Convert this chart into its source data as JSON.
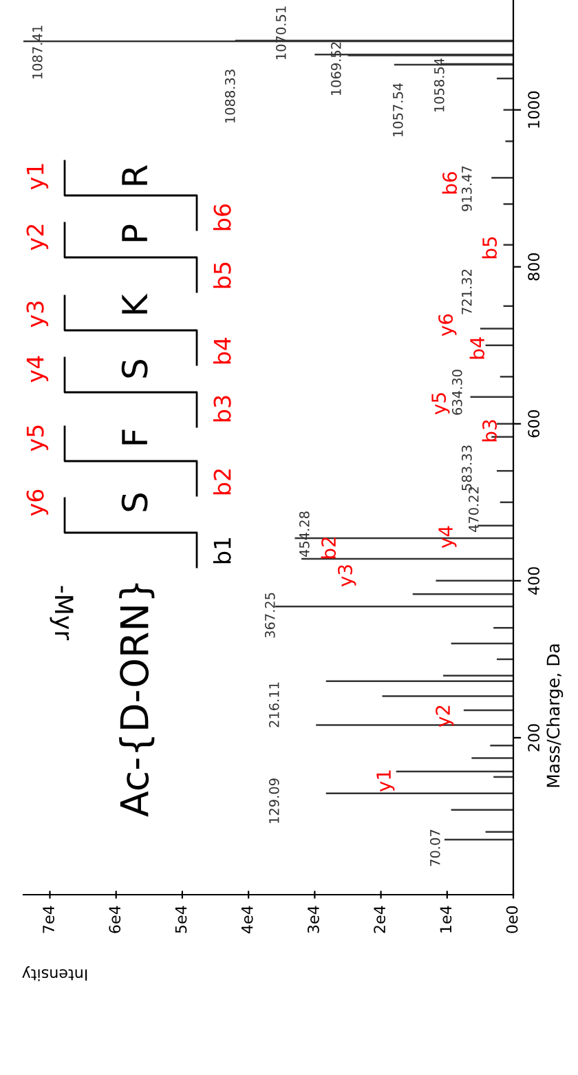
{
  "chart_data": {
    "type": "bar",
    "orientation": "horizontal",
    "xlabel": "Intensity",
    "ylabel": "Mass/Charge, Da",
    "x": [
      70.07,
      80,
      108,
      129.09,
      150,
      157,
      174,
      190,
      216.11,
      235,
      253,
      272,
      279,
      300,
      320,
      340,
      367.25,
      383,
      400,
      428,
      454.28,
      470.22,
      500,
      540,
      583.33,
      600,
      634.3,
      660,
      700,
      721.32,
      750,
      828,
      880,
      913.47,
      960,
      1000,
      1040,
      1057.54,
      1058.54,
      1069.52,
      1070.51,
      1087.41,
      1088.33
    ],
    "values": [
      10400,
      4200,
      9400,
      28300,
      3000,
      17700,
      6300,
      3500,
      29800,
      7500,
      19800,
      28300,
      10600,
      2500,
      9400,
      3000,
      36000,
      15200,
      11700,
      32000,
      33000,
      5400,
      2000,
      2500,
      3300,
      2500,
      6500,
      2000,
      4200,
      5000,
      1500,
      1500,
      1500,
      3300,
      1200,
      1500,
      2500,
      18000,
      11000,
      25000,
      30000,
      74000,
      42000
    ],
    "color": "#333333",
    "xlim": [
      74000,
      0
    ],
    "xticks": [
      {
        "value": 0,
        "label": "0e0"
      },
      {
        "value": 10000,
        "label": "1e4"
      },
      {
        "value": 20000,
        "label": "2e4"
      },
      {
        "value": 30000,
        "label": "3e4"
      },
      {
        "value": 40000,
        "label": "4e4"
      },
      {
        "value": 50000,
        "label": "5e4"
      },
      {
        "value": 60000,
        "label": "6e4"
      },
      {
        "value": 70000,
        "label": "7e4"
      }
    ],
    "ylim": [
      0,
      1140
    ],
    "yticks": [
      200,
      400,
      600,
      800,
      1000
    ],
    "annotations": [
      "70.07",
      "129.09",
      "216.11",
      "367.25",
      "454.28",
      "470.22",
      "583.33",
      "634.30",
      "721.32",
      "913.47",
      "1058.54",
      "1057.54",
      "1069.52",
      "1070.51",
      "1088.33",
      "1087.41",
      "y1",
      "y2",
      "y3",
      "b2",
      "y4",
      "b3",
      "y5",
      "b4",
      "y6",
      "b5",
      "b6",
      "Ac-{D-ORN}",
      "-Myr",
      "S",
      "F",
      "S",
      "K",
      "P",
      "R",
      "y6",
      "y5",
      "y4",
      "y3",
      "y2",
      "y1",
      "b1",
      "b2",
      "b3",
      "b4",
      "b5",
      "b6"
    ]
  }
}
